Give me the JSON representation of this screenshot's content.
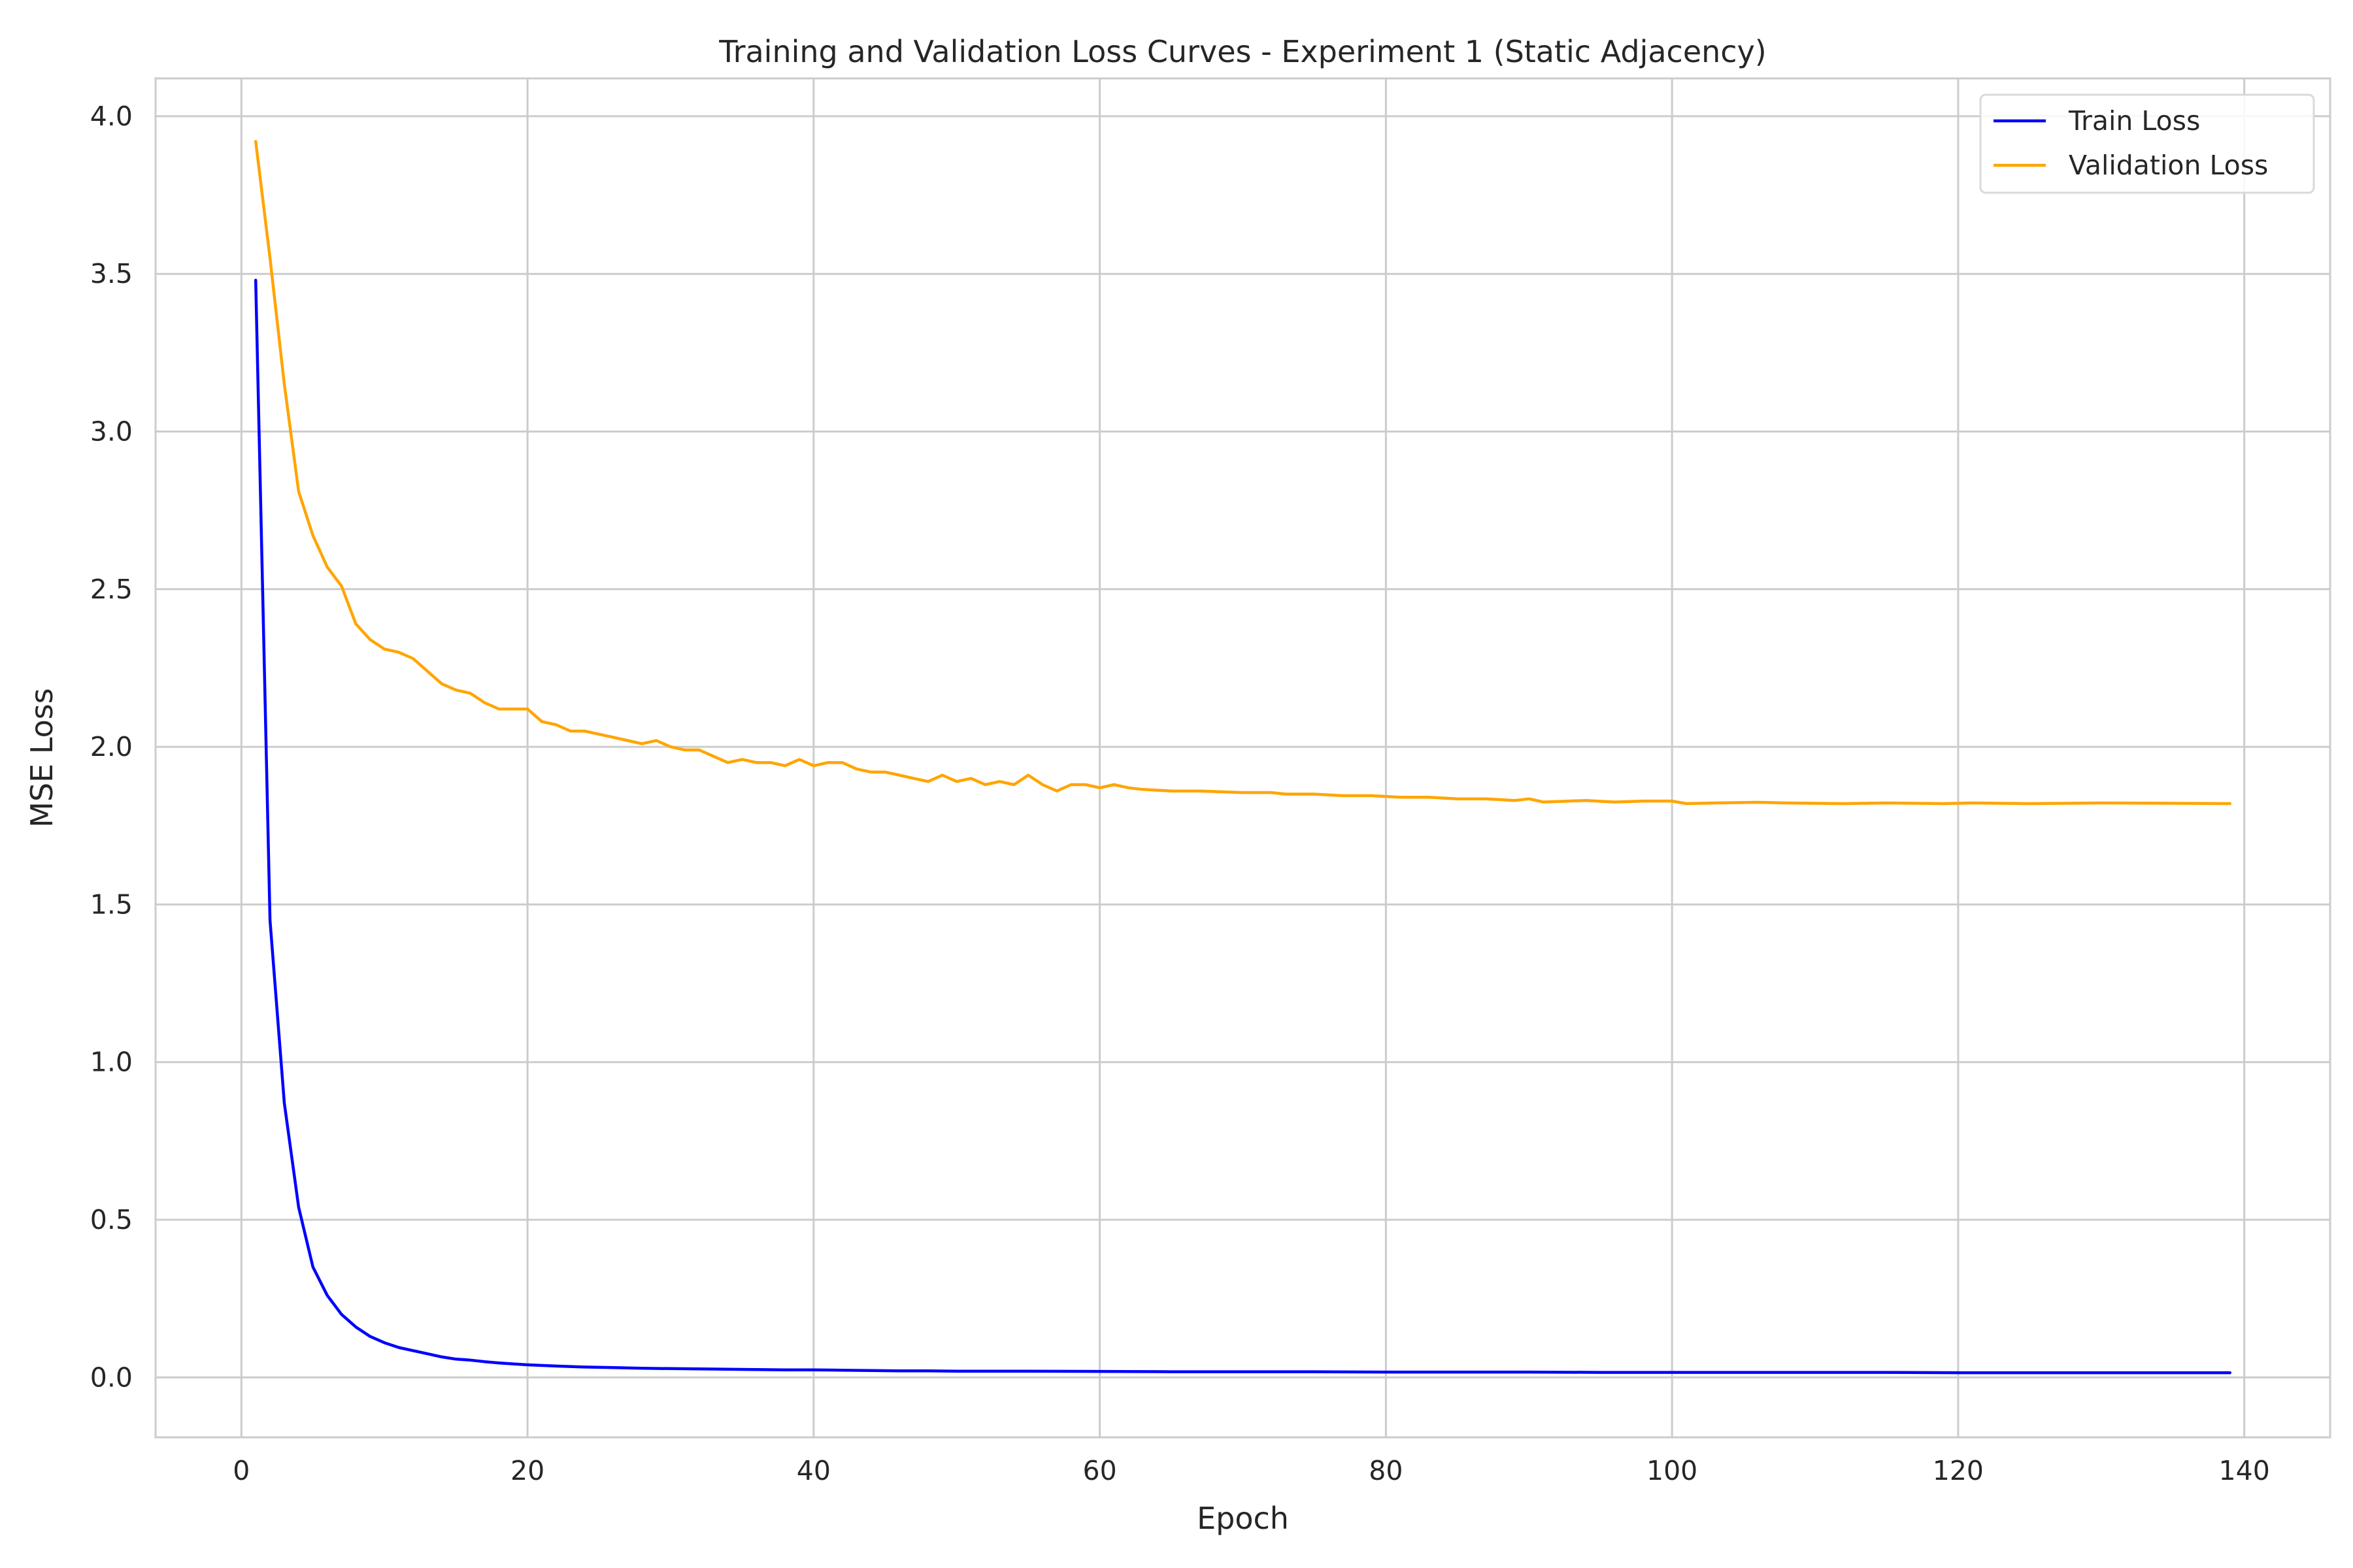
{
  "chart_data": {
    "type": "line",
    "title": "Training and Validation Loss Curves - Experiment 1 (Static Adjacency)",
    "xlabel": "Epoch",
    "ylabel": "MSE Loss",
    "xlim": [
      -6,
      146
    ],
    "ylim": [
      -0.19,
      4.12
    ],
    "xticks": [
      0,
      20,
      40,
      60,
      80,
      100,
      120,
      140
    ],
    "yticks": [
      0.0,
      0.5,
      1.0,
      1.5,
      2.0,
      2.5,
      3.0,
      3.5,
      4.0
    ],
    "xtick_labels": [
      "0",
      "20",
      "40",
      "60",
      "80",
      "100",
      "120",
      "140"
    ],
    "ytick_labels": [
      "0.0",
      "0.5",
      "1.0",
      "1.5",
      "2.0",
      "2.5",
      "3.0",
      "3.5",
      "4.0"
    ],
    "grid": true,
    "legend_position": "top-right",
    "series": [
      {
        "name": "Train Loss",
        "color": "#0000ff",
        "points": [
          [
            1,
            3.48
          ],
          [
            2,
            1.45
          ],
          [
            3,
            0.87
          ],
          [
            4,
            0.54
          ],
          [
            5,
            0.35
          ],
          [
            6,
            0.26
          ],
          [
            7,
            0.2
          ],
          [
            8,
            0.16
          ],
          [
            9,
            0.13
          ],
          [
            10,
            0.11
          ],
          [
            11,
            0.095
          ],
          [
            12,
            0.085
          ],
          [
            13,
            0.075
          ],
          [
            14,
            0.065
          ],
          [
            15,
            0.058
          ],
          [
            16,
            0.055
          ],
          [
            17,
            0.05
          ],
          [
            18,
            0.046
          ],
          [
            19,
            0.043
          ],
          [
            20,
            0.04
          ],
          [
            22,
            0.036
          ],
          [
            24,
            0.033
          ],
          [
            26,
            0.031
          ],
          [
            28,
            0.029
          ],
          [
            30,
            0.028
          ],
          [
            32,
            0.027
          ],
          [
            34,
            0.026
          ],
          [
            36,
            0.025
          ],
          [
            38,
            0.024
          ],
          [
            40,
            0.024
          ],
          [
            42,
            0.023
          ],
          [
            44,
            0.022
          ],
          [
            46,
            0.021
          ],
          [
            48,
            0.021
          ],
          [
            50,
            0.02
          ],
          [
            55,
            0.02
          ],
          [
            60,
            0.019
          ],
          [
            65,
            0.018
          ],
          [
            70,
            0.018
          ],
          [
            75,
            0.018
          ],
          [
            80,
            0.017
          ],
          [
            85,
            0.017
          ],
          [
            90,
            0.017
          ],
          [
            95,
            0.016
          ],
          [
            100,
            0.016
          ],
          [
            105,
            0.016
          ],
          [
            110,
            0.016
          ],
          [
            115,
            0.016
          ],
          [
            120,
            0.015
          ],
          [
            125,
            0.015
          ],
          [
            130,
            0.015
          ],
          [
            135,
            0.015
          ],
          [
            139,
            0.015
          ]
        ]
      },
      {
        "name": "Validation Loss",
        "color": "#ffa500",
        "points": [
          [
            1,
            3.92
          ],
          [
            2,
            3.55
          ],
          [
            3,
            3.15
          ],
          [
            4,
            2.81
          ],
          [
            5,
            2.67
          ],
          [
            6,
            2.57
          ],
          [
            7,
            2.51
          ],
          [
            8,
            2.39
          ],
          [
            9,
            2.34
          ],
          [
            10,
            2.31
          ],
          [
            11,
            2.3
          ],
          [
            12,
            2.28
          ],
          [
            13,
            2.24
          ],
          [
            14,
            2.2
          ],
          [
            15,
            2.18
          ],
          [
            16,
            2.17
          ],
          [
            17,
            2.14
          ],
          [
            18,
            2.12
          ],
          [
            19,
            2.12
          ],
          [
            20,
            2.12
          ],
          [
            21,
            2.08
          ],
          [
            22,
            2.07
          ],
          [
            23,
            2.05
          ],
          [
            24,
            2.05
          ],
          [
            25,
            2.04
          ],
          [
            26,
            2.03
          ],
          [
            27,
            2.02
          ],
          [
            28,
            2.01
          ],
          [
            29,
            2.02
          ],
          [
            30,
            2.0
          ],
          [
            31,
            1.99
          ],
          [
            32,
            1.99
          ],
          [
            33,
            1.97
          ],
          [
            34,
            1.95
          ],
          [
            35,
            1.96
          ],
          [
            36,
            1.95
          ],
          [
            37,
            1.95
          ],
          [
            38,
            1.94
          ],
          [
            39,
            1.96
          ],
          [
            40,
            1.94
          ],
          [
            41,
            1.95
          ],
          [
            42,
            1.95
          ],
          [
            43,
            1.93
          ],
          [
            44,
            1.92
          ],
          [
            45,
            1.92
          ],
          [
            46,
            1.91
          ],
          [
            47,
            1.9
          ],
          [
            48,
            1.89
          ],
          [
            49,
            1.91
          ],
          [
            50,
            1.89
          ],
          [
            51,
            1.9
          ],
          [
            52,
            1.88
          ],
          [
            53,
            1.89
          ],
          [
            54,
            1.88
          ],
          [
            55,
            1.91
          ],
          [
            56,
            1.88
          ],
          [
            57,
            1.86
          ],
          [
            58,
            1.88
          ],
          [
            59,
            1.88
          ],
          [
            60,
            1.87
          ],
          [
            61,
            1.88
          ],
          [
            62,
            1.87
          ],
          [
            63,
            1.865
          ],
          [
            65,
            1.86
          ],
          [
            67,
            1.86
          ],
          [
            70,
            1.855
          ],
          [
            72,
            1.855
          ],
          [
            73,
            1.85
          ],
          [
            75,
            1.85
          ],
          [
            77,
            1.845
          ],
          [
            79,
            1.845
          ],
          [
            81,
            1.84
          ],
          [
            83,
            1.84
          ],
          [
            85,
            1.835
          ],
          [
            87,
            1.835
          ],
          [
            89,
            1.83
          ],
          [
            90,
            1.835
          ],
          [
            91,
            1.825
          ],
          [
            94,
            1.83
          ],
          [
            96,
            1.825
          ],
          [
            98,
            1.828
          ],
          [
            100,
            1.828
          ],
          [
            101,
            1.82
          ],
          [
            103,
            1.822
          ],
          [
            106,
            1.824
          ],
          [
            108,
            1.822
          ],
          [
            112,
            1.82
          ],
          [
            115,
            1.822
          ],
          [
            119,
            1.82
          ],
          [
            121,
            1.822
          ],
          [
            125,
            1.82
          ],
          [
            130,
            1.822
          ],
          [
            135,
            1.821
          ],
          [
            139,
            1.82
          ]
        ]
      }
    ]
  }
}
